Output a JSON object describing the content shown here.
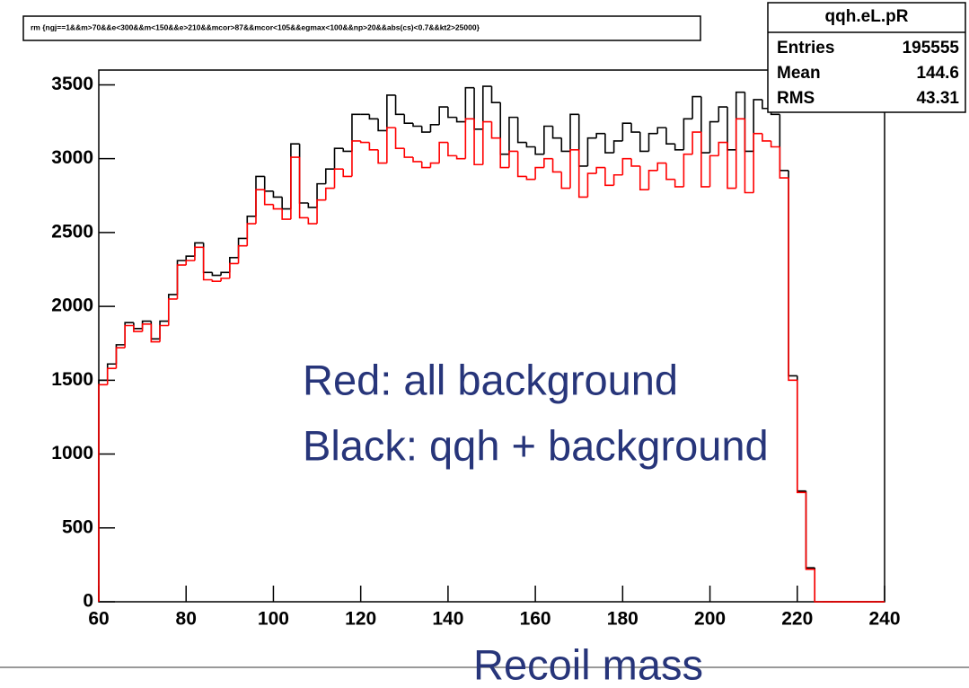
{
  "chart_data": {
    "type": "histogram",
    "title": "rm {ngj==1&&m>70&&e<300&&m<150&&e>210&&mcor>87&&mcor<105&&egmax<100&&np>20&&abs(cs)<0.7&&kt2>25000}",
    "x_label": "Recoil mass",
    "annotations": [
      "Red: all background",
      "Black: qqh + background"
    ],
    "stats": {
      "name": "qqh.eL.pR",
      "rows": [
        [
          "Entries",
          "195555"
        ],
        [
          "Mean",
          "144.6"
        ],
        [
          "RMS",
          "43.31"
        ]
      ]
    },
    "bins": [
      60,
      62,
      64,
      66,
      68,
      70,
      72,
      74,
      76,
      78,
      80,
      82,
      84,
      86,
      88,
      90,
      92,
      94,
      96,
      98,
      100,
      102,
      104,
      106,
      108,
      110,
      112,
      114,
      116,
      118,
      120,
      122,
      124,
      126,
      128,
      130,
      132,
      134,
      136,
      138,
      140,
      142,
      144,
      146,
      148,
      150,
      152,
      154,
      156,
      158,
      160,
      162,
      164,
      166,
      168,
      170,
      172,
      174,
      176,
      178,
      180,
      182,
      184,
      186,
      188,
      190,
      192,
      194,
      196,
      198,
      200,
      202,
      204,
      206,
      208,
      210,
      212,
      214,
      216,
      218,
      220,
      222,
      224,
      226,
      228,
      230,
      232,
      234,
      236,
      238,
      240
    ],
    "series": [
      {
        "color": "#000000",
        "values": [
          1500,
          1610,
          1740,
          1890,
          1850,
          1900,
          1780,
          1900,
          2080,
          2310,
          2340,
          2430,
          2230,
          2210,
          2230,
          2330,
          2460,
          2610,
          2880,
          2780,
          2740,
          2660,
          3100,
          2700,
          2670,
          2830,
          2930,
          3070,
          3050,
          3300,
          3300,
          3270,
          3190,
          3430,
          3300,
          3240,
          3220,
          3180,
          3230,
          3350,
          3280,
          3250,
          3480,
          3200,
          3490,
          3380,
          3030,
          3280,
          3110,
          3080,
          3030,
          3220,
          3140,
          3050,
          3300,
          2950,
          3140,
          3170,
          3040,
          3120,
          3240,
          3180,
          3050,
          3170,
          3210,
          3100,
          3060,
          3270,
          3420,
          3040,
          3250,
          3350,
          3060,
          3450,
          3050,
          3400,
          3340,
          3300,
          2920,
          1530,
          750,
          230,
          0,
          0,
          0,
          0,
          0,
          0,
          0,
          0
        ]
      },
      {
        "color": "#ff0000",
        "values": [
          1470,
          1580,
          1720,
          1870,
          1830,
          1880,
          1760,
          1870,
          2050,
          2280,
          2310,
          2400,
          2180,
          2170,
          2190,
          2290,
          2410,
          2560,
          2790,
          2690,
          2660,
          2590,
          3010,
          2600,
          2560,
          2720,
          2800,
          2930,
          2880,
          3120,
          3110,
          3060,
          2970,
          3210,
          3070,
          3010,
          2980,
          2940,
          2970,
          3110,
          3020,
          3000,
          3270,
          2960,
          3250,
          3140,
          2940,
          3050,
          2880,
          2860,
          2940,
          3000,
          2910,
          2800,
          3060,
          2740,
          2900,
          2940,
          2820,
          2890,
          3000,
          2950,
          2790,
          2920,
          2970,
          2860,
          2810,
          3030,
          3180,
          2810,
          3020,
          3110,
          2800,
          3270,
          2770,
          3170,
          3120,
          3080,
          2870,
          1500,
          740,
          220,
          0,
          0,
          0,
          0,
          0,
          0,
          0,
          0
        ]
      }
    ],
    "xlim": [
      60,
      240
    ],
    "ylim": [
      0,
      3600
    ],
    "xticks": [
      60,
      80,
      100,
      120,
      140,
      160,
      180,
      200,
      220,
      240
    ],
    "yticks": [
      0,
      500,
      1000,
      1500,
      2000,
      2500,
      3000,
      3500
    ]
  }
}
